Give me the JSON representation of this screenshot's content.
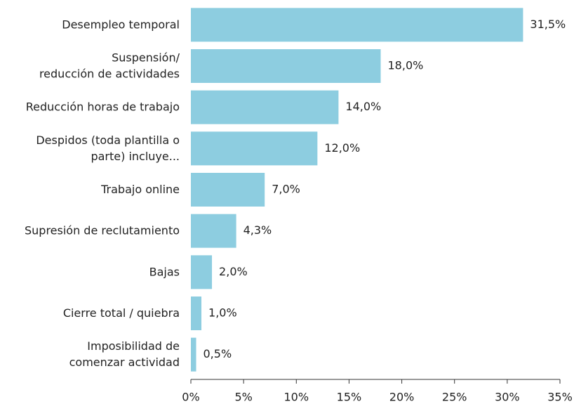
{
  "chart_data": {
    "type": "bar",
    "orientation": "horizontal",
    "color": "#8dcde0",
    "categories": [
      "Desempleo temporal",
      "Suspensión/\nreducción de actividades",
      "Reducción horas de trabajo",
      "Despidos (toda plantilla o\nparte) incluye...",
      "Trabajo online",
      "Supresión de reclutamiento",
      "Bajas",
      "Cierre total / quiebra",
      "Imposibilidad de\ncomenzar actividad"
    ],
    "values": [
      31.5,
      18.0,
      14.0,
      12.0,
      7.0,
      4.3,
      2.0,
      1.0,
      0.5
    ],
    "value_labels": [
      "31,5%",
      "18,0%",
      "14,0%",
      "12,0%",
      "7,0%",
      "4,3%",
      "2,0%",
      "1,0%",
      "0,5%"
    ],
    "xlim": [
      0,
      35
    ],
    "xticks": [
      {
        "value": 0,
        "label": "0%"
      },
      {
        "value": 5,
        "label": "5%"
      },
      {
        "value": 10,
        "label": "10%"
      },
      {
        "value": 15,
        "label": "15%"
      },
      {
        "value": 20,
        "label": "20%"
      },
      {
        "value": 25,
        "label": "25%"
      },
      {
        "value": 30,
        "label": "30%"
      },
      {
        "value": 35,
        "label": "35%"
      }
    ]
  }
}
